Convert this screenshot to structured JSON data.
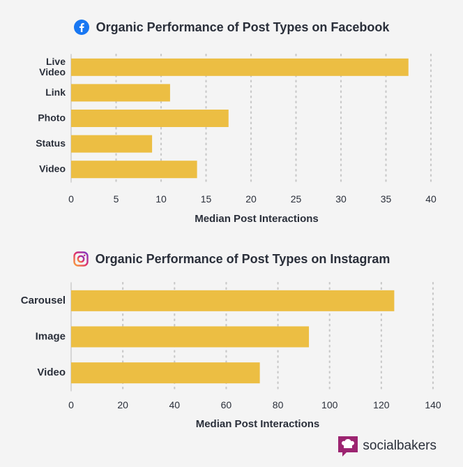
{
  "colors": {
    "bar": "#ecbe43",
    "text": "#2a2f3a",
    "grid": "#c9c9c9",
    "facebook": "#1877f2",
    "instagram": "#c13584",
    "brand": "#9c2470"
  },
  "charts": {
    "facebook": {
      "logo_icon": "facebook-icon",
      "chart_data": {
        "type": "bar",
        "orientation": "horizontal",
        "title": "Organic Performance of Post Types on Facebook",
        "categories": [
          "Live Video",
          "Link",
          "Photo",
          "Status",
          "Video"
        ],
        "values": [
          37.5,
          11,
          17.5,
          9,
          14
        ],
        "xlabel": "Median Post Interactions",
        "ylabel": "",
        "xlim": [
          0,
          40
        ],
        "ticks": [
          0,
          5,
          10,
          15,
          20,
          25,
          30,
          35,
          40
        ],
        "grid": true
      }
    },
    "instagram": {
      "logo_icon": "instagram-icon",
      "chart_data": {
        "type": "bar",
        "orientation": "horizontal",
        "title": "Organic Performance of Post Types on Instagram",
        "categories": [
          "Carousel",
          "Image",
          "Video"
        ],
        "values": [
          125,
          92,
          73
        ],
        "xlabel": "Median Post Interactions",
        "ylabel": "",
        "xlim": [
          0,
          140
        ],
        "ticks": [
          0,
          20,
          40,
          60,
          80,
          100,
          120,
          140
        ],
        "grid": true
      }
    }
  },
  "brand": {
    "icon": "socialbakers-chef-icon",
    "name": "socialbakers"
  }
}
